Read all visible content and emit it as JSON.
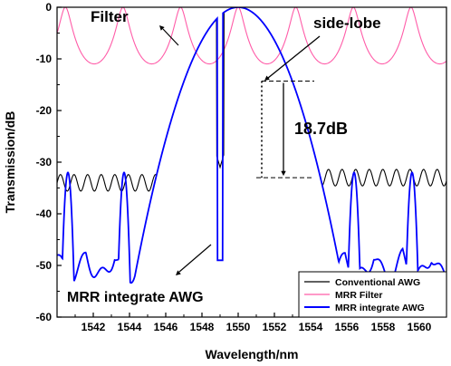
{
  "chart_data": {
    "type": "line",
    "xlabel": "Wavelength/nm",
    "ylabel": "Transmission/dB",
    "xlim": [
      1540,
      1561.5
    ],
    "ylim": [
      -60,
      0
    ],
    "xticks": [
      1542,
      1544,
      1546,
      1548,
      1550,
      1552,
      1554,
      1556,
      1558,
      1560
    ],
    "yticks": [
      0,
      -10,
      -20,
      -30,
      -40,
      -50,
      -60
    ],
    "grid": false,
    "legend_position": "bottom-right",
    "series": [
      {
        "name": "Conventional AWG",
        "color": "#000000",
        "desc": "central passband peaking at 1550 nm (0 dB), rippled side floor around -33 to -25 dB"
      },
      {
        "name": "MRR Filter",
        "color": "#ff5ca8",
        "desc": "periodic microring comb, peaks ~0 dB every ~3.2 nm, troughs ~-13 to -15 dB"
      },
      {
        "name": "MRR integrate AWG",
        "color": "#0000ff",
        "desc": "AWG passband shaped by ring comb, side peaks ~-32 dB at ring resonances, floor down to ~-53 dB"
      }
    ],
    "annotations": [
      {
        "text": "Filter"
      },
      {
        "text": "side-lobe"
      },
      {
        "text": "18.7dB",
        "delta_db": 18.7
      },
      {
        "text": "MRR integrate AWG"
      }
    ]
  }
}
